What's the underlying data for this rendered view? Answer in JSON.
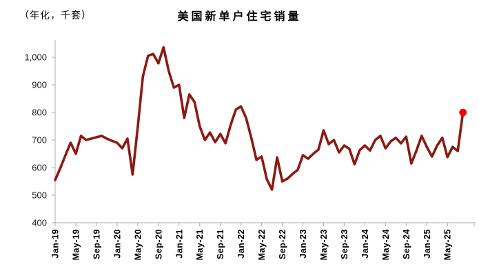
{
  "chart": {
    "title": "美国新单户住宅销量",
    "unit_label": "（年化，千套）"
  },
  "chart_data": {
    "type": "line",
    "title": "美国新单户住宅销量",
    "ylabel": "（年化，千套）",
    "ylim": [
      400,
      1000
    ],
    "y_ticks": [
      400,
      500,
      600,
      700,
      800,
      900,
      1000
    ],
    "y_tick_labels": [
      "400",
      "500",
      "600",
      "700",
      "800",
      "900",
      "1,000"
    ],
    "x_range": [
      "Jan-19",
      "Aug-25"
    ],
    "x_tick_every_n_months": 4,
    "x_tick_labels": [
      "Jan-19",
      "May-19",
      "Sep-19",
      "Jan-20",
      "May-20",
      "Sep-20",
      "Jan-21",
      "May-21",
      "Sep-21",
      "Jan-22",
      "May-22",
      "Sep-22",
      "Jan-23",
      "May-23",
      "Sep-23",
      "Jan-24",
      "May-24",
      "Sep-24",
      "Jan-25",
      "May-25"
    ],
    "grid": false,
    "legend_position": "none",
    "series": [
      {
        "name": "美国新单户住宅销量",
        "color": "#8B1A13",
        "values": [
          555,
          598,
          645,
          690,
          650,
          715,
          700,
          705,
          710,
          715,
          705,
          697,
          690,
          670,
          705,
          575,
          745,
          930,
          1005,
          1012,
          978,
          1036,
          950,
          890,
          900,
          780,
          865,
          838,
          750,
          700,
          727,
          692,
          722,
          688,
          755,
          810,
          822,
          780,
          708,
          628,
          640,
          558,
          520,
          637,
          550,
          560,
          577,
          592,
          645,
          632,
          650,
          665,
          735,
          685,
          700,
          655,
          680,
          668,
          612,
          663,
          680,
          662,
          700,
          715,
          670,
          695,
          708,
          688,
          712,
          615,
          662,
          715,
          675,
          640,
          680,
          708,
          638,
          675,
          660,
          800
        ]
      }
    ],
    "last_point": {
      "month": "Aug-25",
      "value": 800,
      "marker_color": "#FF0000"
    },
    "axis_color": "#ABABAB"
  }
}
